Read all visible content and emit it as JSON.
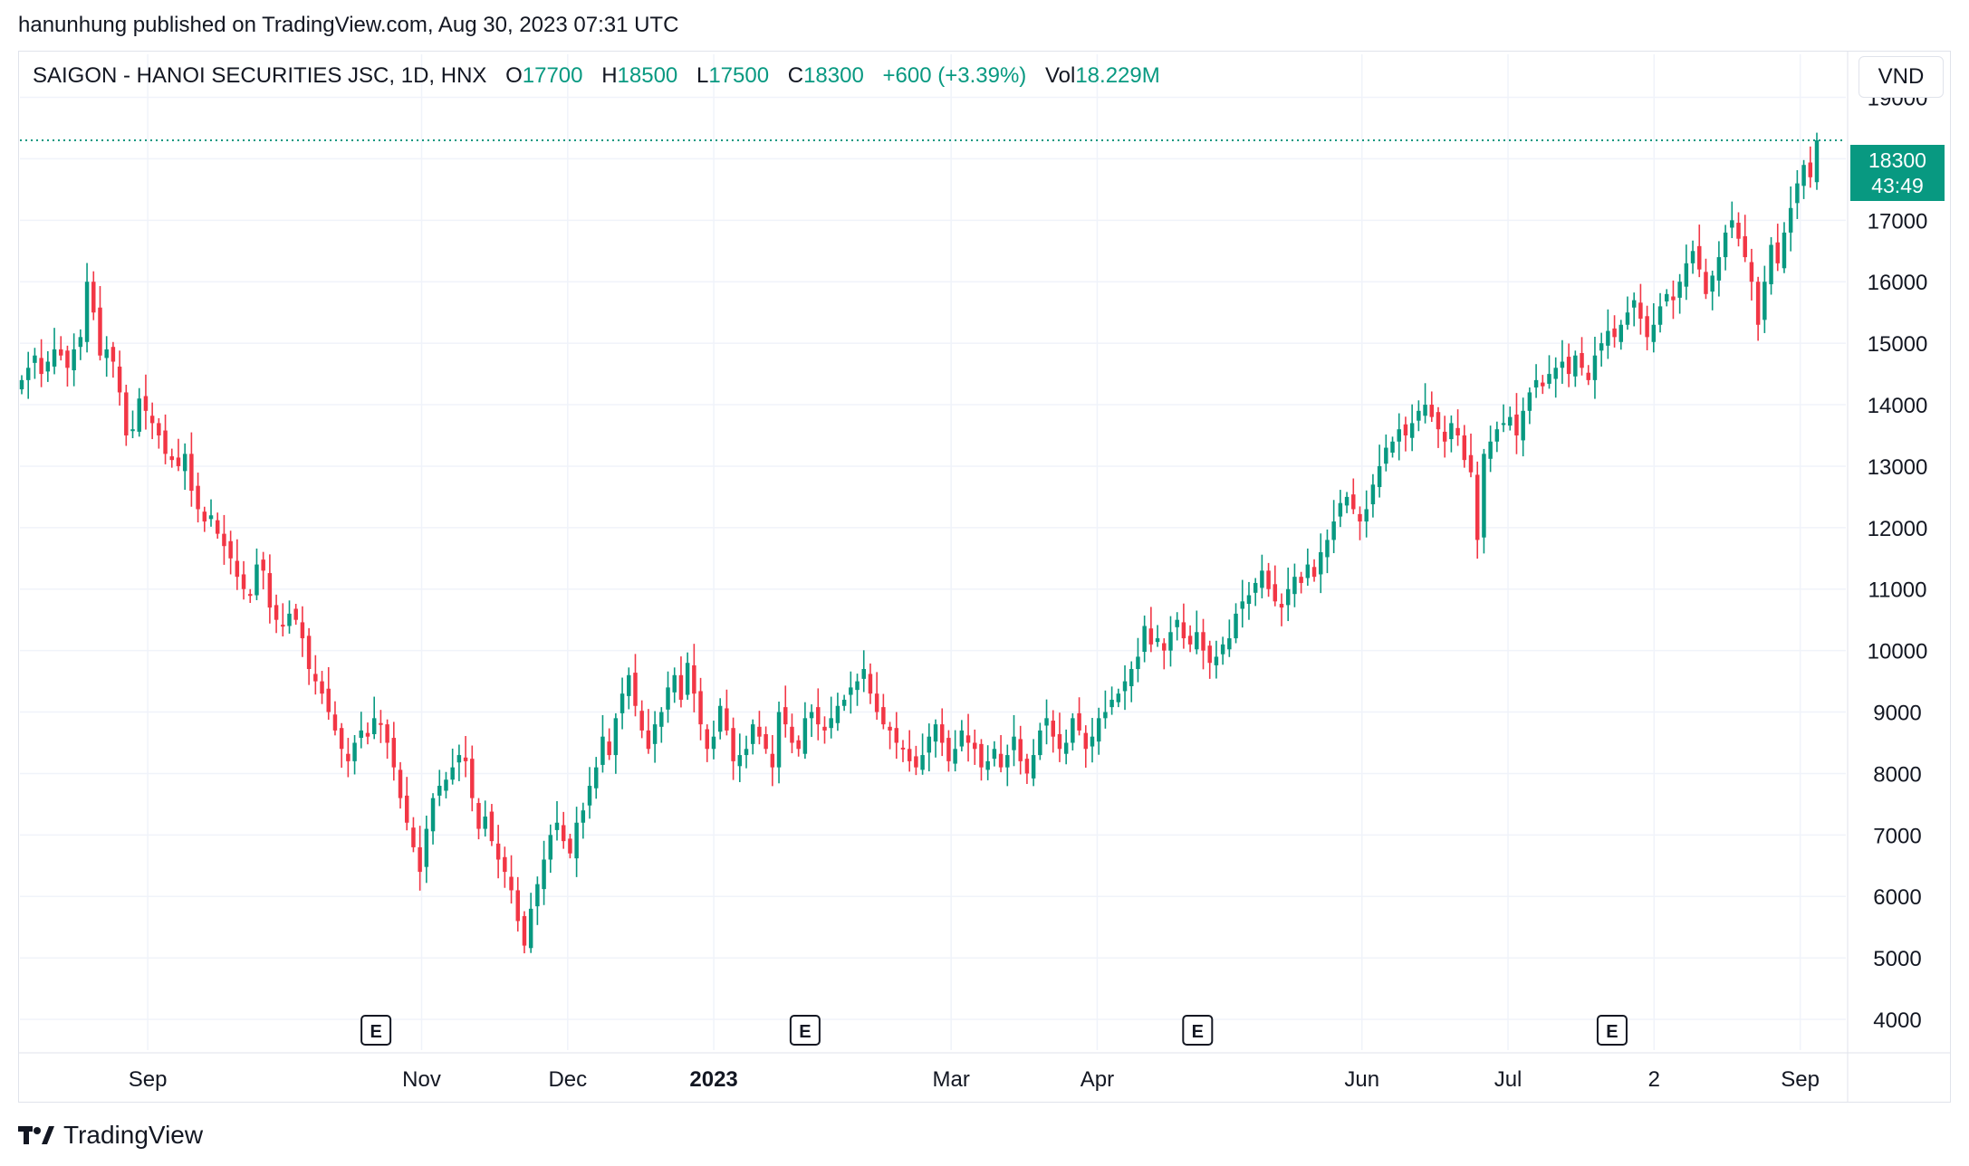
{
  "header": {
    "published": "hanunhung published on TradingView.com, Aug 30, 2023 07:31 UTC"
  },
  "legend": {
    "symbol": "SAIGON - HANOI SECURITIES JSC, 1D, HNX",
    "open_label": "O",
    "open": "17700",
    "high_label": "H",
    "high": "18500",
    "low_label": "L",
    "low": "17500",
    "close_label": "C",
    "close": "18300",
    "change": "+600 (+3.39%)",
    "vol_label": "Vol",
    "vol": "18.229M"
  },
  "currency": "VND",
  "last_price": {
    "price": "18300",
    "countdown": "43:49"
  },
  "brand": "TradingView",
  "colors": {
    "up": "#089981",
    "down": "#f23645",
    "grid": "#f0f3fa"
  },
  "chart_data": {
    "type": "candlestick",
    "ylim": [
      3500,
      19700
    ],
    "y_ticks": [
      4000,
      5000,
      6000,
      7000,
      8000,
      9000,
      10000,
      11000,
      12000,
      13000,
      14000,
      15000,
      16000,
      17000,
      18000,
      19000
    ],
    "y_tick_labels": [
      "4000",
      "5000",
      "6000",
      "7000",
      "8000",
      "9000",
      "10000",
      "11000",
      "12000",
      "13000",
      "14000",
      "15000",
      "16000",
      "17000",
      "",
      "19000"
    ],
    "x_labels": [
      {
        "label": "Sep",
        "pos": 0.07,
        "bold": false
      },
      {
        "label": "Nov",
        "pos": 0.22,
        "bold": false
      },
      {
        "label": "Dec",
        "pos": 0.3,
        "bold": false
      },
      {
        "label": "2023",
        "pos": 0.38,
        "bold": true
      },
      {
        "label": "Mar",
        "pos": 0.51,
        "bold": false
      },
      {
        "label": "Apr",
        "pos": 0.59,
        "bold": false
      },
      {
        "label": "Jun",
        "pos": 0.735,
        "bold": false
      },
      {
        "label": "Jul",
        "pos": 0.815,
        "bold": false
      },
      {
        "label": "2",
        "pos": 0.895,
        "bold": false
      },
      {
        "label": "Sep",
        "pos": 0.975,
        "bold": false
      }
    ],
    "earnings": [
      {
        "label": "E",
        "pos": 0.195
      },
      {
        "label": "E",
        "pos": 0.43
      },
      {
        "label": "E",
        "pos": 0.645
      },
      {
        "label": "E",
        "pos": 0.872
      }
    ],
    "last_close": 18300,
    "closes": [
      14400,
      14600,
      14800,
      14500,
      14700,
      14900,
      14800,
      14600,
      14900,
      15100,
      16000,
      15500,
      14800,
      14900,
      14700,
      14200,
      13500,
      13600,
      14100,
      13900,
      13700,
      13500,
      13200,
      13100,
      13000,
      13200,
      12600,
      12300,
      12100,
      12200,
      11900,
      11700,
      11500,
      11200,
      11000,
      10900,
      11400,
      11300,
      10700,
      10500,
      10400,
      10600,
      10500,
      10200,
      9700,
      9500,
      9300,
      9000,
      8700,
      8400,
      8200,
      8500,
      8700,
      8600,
      8900,
      8800,
      8500,
      8100,
      7600,
      7200,
      6800,
      6400,
      7100,
      7600,
      7800,
      7900,
      8100,
      8300,
      8200,
      7600,
      7100,
      7300,
      6900,
      6600,
      6400,
      6100,
      5600,
      5200,
      5800,
      6200,
      6600,
      7000,
      7200,
      6900,
      6700,
      7200,
      7400,
      7800,
      8100,
      8600,
      8300,
      8900,
      9300,
      9600,
      9100,
      8700,
      8400,
      8800,
      9000,
      9400,
      9600,
      9200,
      9800,
      9300,
      8800,
      8400,
      8600,
      9100,
      8700,
      8200,
      8300,
      8400,
      8800,
      8600,
      8400,
      8100,
      9000,
      8800,
      8500,
      8400,
      8900,
      9000,
      8800,
      8700,
      8900,
      9100,
      9200,
      9400,
      9500,
      9700,
      9300,
      9000,
      8800,
      8700,
      8500,
      8400,
      8200,
      8100,
      8300,
      8600,
      8800,
      8500,
      8200,
      8400,
      8700,
      8500,
      8400,
      8100,
      8200,
      8400,
      8100,
      8300,
      8600,
      8200,
      8000,
      8300,
      8700,
      8900,
      8600,
      8400,
      8500,
      8900,
      8700,
      8400,
      8600,
      8900,
      9000,
      9200,
      9300,
      9500,
      9700,
      9900,
      10400,
      10100,
      10200,
      10000,
      10300,
      10500,
      10200,
      10100,
      10300,
      10000,
      9800,
      9900,
      10100,
      10200,
      10600,
      10800,
      10900,
      11100,
      11300,
      11000,
      10800,
      10700,
      11000,
      11200,
      11100,
      11400,
      11200,
      11600,
      11800,
      12100,
      12400,
      12500,
      12300,
      12100,
      12300,
      12700,
      13000,
      13300,
      13400,
      13600,
      13500,
      13700,
      13900,
      14000,
      13800,
      13600,
      13400,
      13700,
      13500,
      13100,
      12900,
      11800,
      13200,
      13400,
      13600,
      13700,
      13800,
      13500,
      13900,
      14200,
      14400,
      14300,
      14500,
      14600,
      14700,
      14500,
      14800,
      14600,
      14400,
      14800,
      15000,
      15200,
      15100,
      15300,
      15500,
      15700,
      15400,
      15100,
      15300,
      15600,
      15800,
      15700,
      16000,
      16300,
      16500,
      16200,
      15800,
      16100,
      16400,
      16800,
      17000,
      16700,
      16400,
      16000,
      15300,
      16000,
      16600,
      16300,
      16800,
      17200,
      17600,
      17900,
      17700,
      18300
    ]
  }
}
